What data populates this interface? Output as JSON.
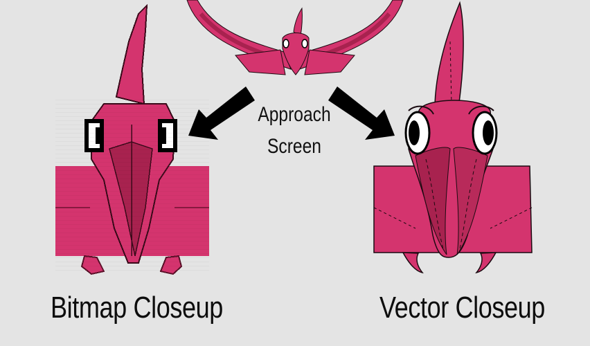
{
  "center_label": {
    "line1": "Approach",
    "line2": "Screen"
  },
  "captions": {
    "bitmap": "Bitmap Closeup",
    "vector": "Vector Closeup"
  },
  "colors": {
    "background": "#e4e4e4",
    "creature_body": "#d4346e",
    "creature_shadow": "#a8224f",
    "outline": "#1a0a10",
    "arrow": "#000000"
  }
}
